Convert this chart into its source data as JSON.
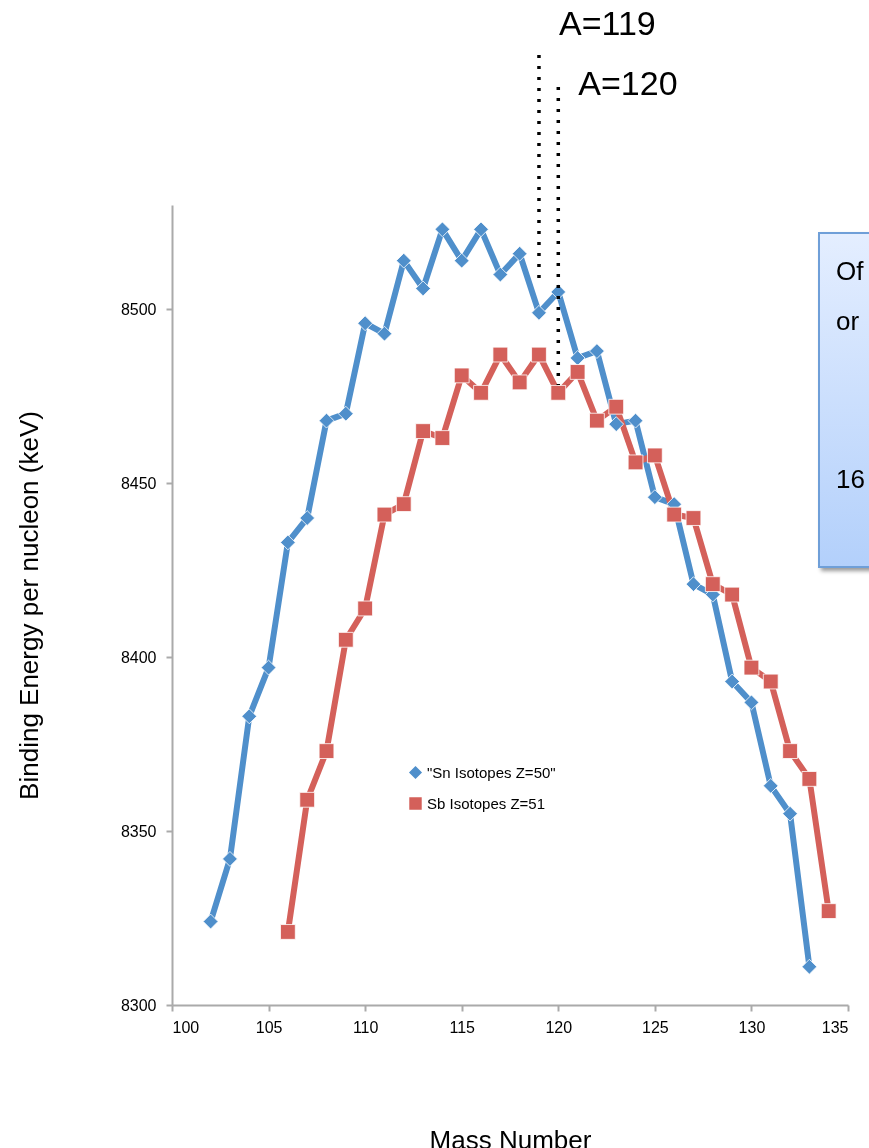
{
  "chart_data": {
    "type": "line",
    "xlabel": "Mass Number",
    "ylabel": "Binding Energy per nucleon (keV)",
    "xlim": [
      100,
      135
    ],
    "xticks": [
      100,
      105,
      110,
      115,
      120,
      125,
      130,
      135
    ],
    "ylim": [
      8300,
      8530
    ],
    "yticks": [
      {
        "value": 8300,
        "label": "8300"
      },
      {
        "value": 8350,
        "label": "8350"
      },
      {
        "value": 8400,
        "label": "8400"
      },
      {
        "value": 8450,
        "label": "8450"
      },
      {
        "value": 8500,
        "label": "8500"
      }
    ],
    "grid": false,
    "legend": "left",
    "series": [
      {
        "name": "\"Sn Isotopes Z=50\"",
        "color": "#4f8fcb",
        "marker": "diamond",
        "x": [
          102,
          103,
          104,
          105,
          106,
          107,
          108,
          109,
          110,
          111,
          112,
          113,
          114,
          115,
          116,
          117,
          118,
          119,
          120,
          121,
          122,
          123,
          124,
          125,
          126,
          127,
          128,
          129,
          130,
          131,
          132,
          133
        ],
        "values": [
          8324,
          8342,
          8383,
          8397,
          8433,
          8440,
          8468,
          8470,
          8496,
          8493,
          8514,
          8506,
          8523,
          8514,
          8523,
          8510,
          8516,
          8499,
          8505,
          8486,
          8488,
          8467,
          8468,
          8446,
          8444,
          8421,
          8418,
          8393,
          8387,
          8363,
          8355,
          8311
        ]
      },
      {
        "name": "Sb Isotopes Z=51",
        "color": "#d4605a",
        "marker": "square",
        "x": [
          106,
          107,
          108,
          109,
          110,
          111,
          112,
          113,
          114,
          115,
          116,
          117,
          118,
          119,
          120,
          121,
          122,
          123,
          124,
          125,
          126,
          127,
          128,
          129,
          130,
          131,
          132,
          133,
          134
        ],
        "values": [
          8321,
          8359,
          8373,
          8405,
          8414,
          8441,
          8444,
          8465,
          8463,
          8481,
          8476,
          8487,
          8479,
          8487,
          8476,
          8482,
          8468,
          8472,
          8456,
          8458,
          8441,
          8440,
          8421,
          8418,
          8397,
          8393,
          8373,
          8365,
          8327
        ]
      }
    ],
    "ref_lines": [
      {
        "axis": "x",
        "value": 119,
        "label": "A=119",
        "color": "#000000",
        "line_style": "dotted"
      },
      {
        "axis": "x",
        "value": 120,
        "label": "A=120",
        "color": "#000000",
        "line_style": "dotted"
      }
    ],
    "annotations": [
      "Of",
      "or",
      "16"
    ]
  }
}
